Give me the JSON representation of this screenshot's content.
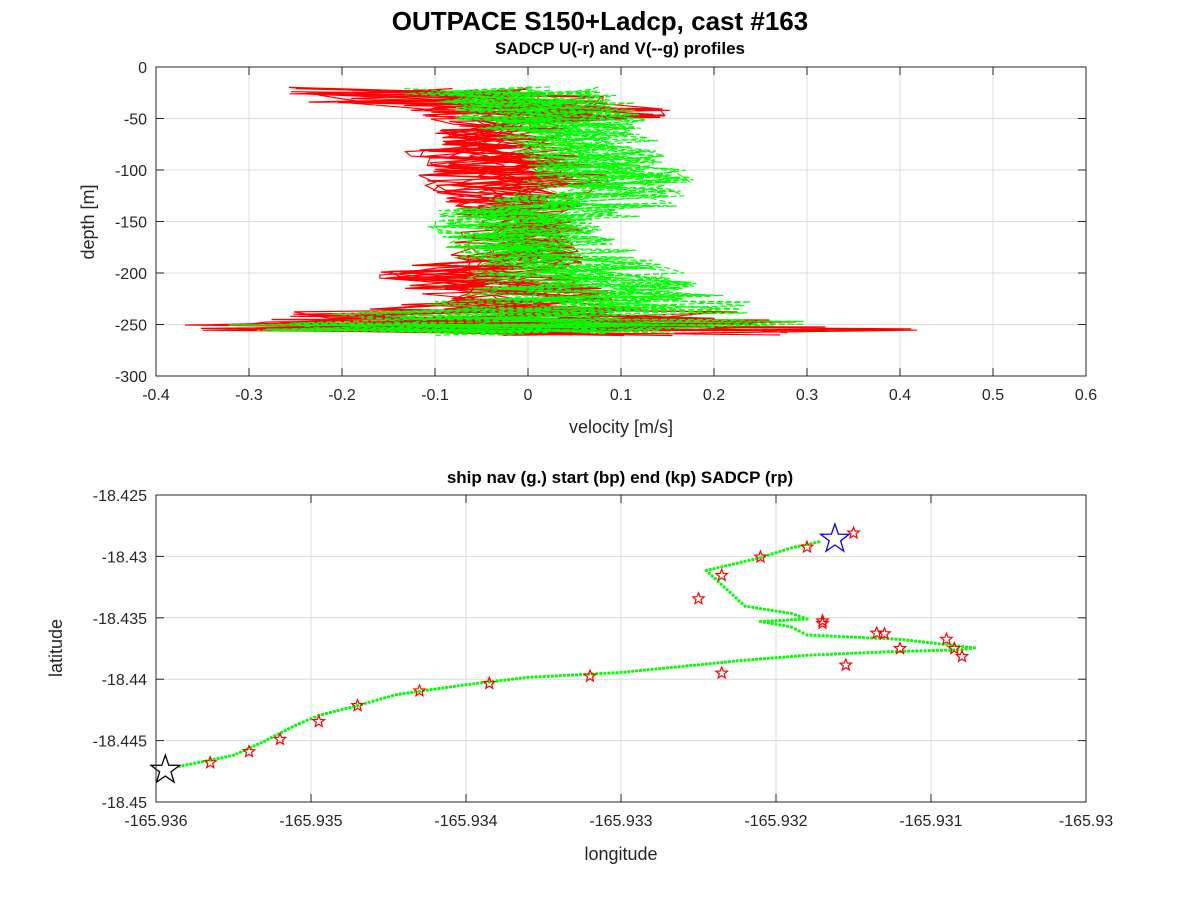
{
  "figure_title": "OUTPACE S150+Ladcp, cast #163",
  "chart_data": [
    {
      "type": "line",
      "title": "SADCP U(-r) and V(--g) profiles",
      "xlabel": "velocity [m/s]",
      "ylabel": "depth [m]",
      "xlim": [
        -0.4,
        0.6
      ],
      "ylim": [
        -300,
        0
      ],
      "xticks": [
        "-0.4",
        "-0.3",
        "-0.2",
        "-0.1",
        "0",
        "0.1",
        "0.2",
        "0.3",
        "0.4",
        "0.5",
        "0.6"
      ],
      "yticks": [
        "-300",
        "-250",
        "-200",
        "-150",
        "-100",
        "-50",
        "0"
      ],
      "grid": true,
      "legend": "none",
      "colors": {
        "u": "#ff0000",
        "v": "#00ff00"
      },
      "series": [
        {
          "style": "solid",
          "color": "#ff0000",
          "depth": [
            -22,
            -30,
            -38,
            -46,
            -55,
            -64,
            -73,
            -82,
            -91,
            -100,
            -110,
            -120,
            -130,
            -140,
            -150,
            -160,
            -170,
            -180,
            -190,
            -200,
            -210,
            -220,
            -230,
            -240,
            -248,
            -253,
            -258
          ],
          "envelope_min": [
            -0.27,
            -0.24,
            -0.14,
            -0.12,
            -0.09,
            -0.1,
            -0.1,
            -0.14,
            -0.11,
            -0.12,
            -0.12,
            -0.11,
            -0.09,
            -0.08,
            -0.06,
            -0.08,
            -0.09,
            -0.1,
            -0.13,
            -0.16,
            -0.14,
            -0.12,
            -0.18,
            -0.26,
            -0.37,
            -0.37,
            -0.28
          ],
          "envelope_max": [
            0.02,
            0.1,
            0.16,
            0.15,
            0.05,
            0.04,
            0.03,
            0.06,
            0.07,
            0.09,
            0.11,
            0.08,
            0.06,
            0.04,
            0.05,
            0.06,
            0.05,
            0.06,
            0.07,
            0.07,
            0.08,
            0.1,
            0.13,
            0.24,
            0.33,
            0.42,
            0.34
          ],
          "center": [
            -0.1,
            -0.05,
            0.0,
            0.02,
            -0.03,
            -0.04,
            -0.03,
            -0.03,
            -0.02,
            -0.01,
            -0.01,
            -0.01,
            -0.01,
            -0.01,
            -0.01,
            -0.02,
            -0.02,
            -0.02,
            -0.03,
            -0.04,
            -0.03,
            -0.01,
            0.0,
            0.01,
            0.0,
            0.02,
            0.03
          ]
        },
        {
          "style": "dashed",
          "color": "#00ff00",
          "depth": [
            -22,
            -30,
            -38,
            -46,
            -55,
            -64,
            -73,
            -82,
            -91,
            -100,
            -110,
            -120,
            -130,
            -140,
            -150,
            -160,
            -170,
            -180,
            -190,
            -200,
            -210,
            -220,
            -230,
            -240,
            -248,
            -253,
            -258
          ],
          "envelope_min": [
            -0.14,
            -0.1,
            -0.08,
            -0.08,
            -0.06,
            -0.04,
            -0.02,
            -0.02,
            -0.01,
            0.0,
            -0.01,
            -0.02,
            -0.05,
            -0.1,
            -0.11,
            -0.11,
            -0.09,
            -0.08,
            -0.07,
            -0.07,
            -0.07,
            -0.08,
            -0.12,
            -0.22,
            -0.34,
            -0.3,
            -0.1
          ],
          "envelope_max": [
            0.08,
            0.1,
            0.12,
            0.13,
            0.13,
            0.13,
            0.14,
            0.15,
            0.16,
            0.17,
            0.18,
            0.17,
            0.16,
            0.12,
            0.08,
            0.08,
            0.1,
            0.12,
            0.15,
            0.17,
            0.19,
            0.22,
            0.25,
            0.26,
            0.3,
            0.22,
            0.17
          ],
          "center": [
            -0.02,
            0.0,
            0.01,
            0.02,
            0.03,
            0.04,
            0.05,
            0.06,
            0.07,
            0.08,
            0.09,
            0.08,
            0.06,
            0.02,
            -0.01,
            -0.01,
            0.0,
            0.02,
            0.04,
            0.05,
            0.06,
            0.06,
            0.06,
            0.05,
            0.04,
            0.03,
            0.02
          ]
        }
      ]
    },
    {
      "type": "scatter",
      "title": "ship nav (g.) start (bp) end (kp) SADCP (rp)",
      "xlabel": "longitude",
      "ylabel": "latitude",
      "xlim": [
        -165.936,
        -165.93
      ],
      "ylim": [
        -18.45,
        -18.425
      ],
      "xticks": [
        "-165.936",
        "-165.935",
        "-165.934",
        "-165.933",
        "-165.932",
        "-165.931",
        "-165.93"
      ],
      "yticks": [
        "-18.45",
        "-18.445",
        "-18.44",
        "-18.435",
        "-18.43",
        "-18.425"
      ],
      "grid": true,
      "legend": "none",
      "colors": {
        "nav": "#00ff00",
        "start": "#0000ff",
        "end": "#000000",
        "sadcp": "#ff0000"
      },
      "nav_track": {
        "lon": [
          -165.93585,
          -165.9355,
          -165.9353,
          -165.9351,
          -165.93495,
          -165.9347,
          -165.93445,
          -165.934,
          -165.9336,
          -165.933,
          -165.9326,
          -165.9322,
          -165.9318,
          -165.93125,
          -165.9308,
          -165.93072,
          -165.9312,
          -165.9318,
          -165.9319,
          -165.9321,
          -165.9318,
          -165.9319,
          -165.9322,
          -165.93245,
          -165.9321,
          -165.9319,
          -165.9317
        ],
        "lat": [
          -18.4471,
          -18.4462,
          -18.44505,
          -18.44375,
          -18.44295,
          -18.44215,
          -18.44125,
          -18.44045,
          -18.43985,
          -18.43945,
          -18.43895,
          -18.43845,
          -18.43805,
          -18.43775,
          -18.4376,
          -18.43745,
          -18.43675,
          -18.4364,
          -18.43575,
          -18.4353,
          -18.4351,
          -18.43465,
          -18.43405,
          -18.43115,
          -18.4301,
          -18.4293,
          -18.42875
        ]
      },
      "start_point": {
        "lon": -165.93162,
        "lat": -18.42858
      },
      "end_point": {
        "lon": -165.93594,
        "lat": -18.4474
      },
      "sadcp_points": {
        "lon": [
          -165.93565,
          -165.9354,
          -165.9352,
          -165.93495,
          -165.9347,
          -165.9343,
          -165.93385,
          -165.9332,
          -165.93235,
          -165.93155,
          -165.9308,
          -165.9312,
          -165.9317,
          -165.93135,
          -165.9309,
          -165.93085,
          -165.9325,
          -165.9321,
          -165.9318,
          -165.93235,
          -165.9313,
          -165.9317,
          -165.9315
        ],
        "lat": [
          -18.4468,
          -18.4459,
          -18.4449,
          -18.44345,
          -18.44215,
          -18.44095,
          -18.44035,
          -18.43975,
          -18.4395,
          -18.43885,
          -18.43815,
          -18.4375,
          -18.43545,
          -18.43625,
          -18.43675,
          -18.4375,
          -18.43345,
          -18.43005,
          -18.42925,
          -18.43155,
          -18.4363,
          -18.43525,
          -18.4281
        ]
      }
    }
  ]
}
